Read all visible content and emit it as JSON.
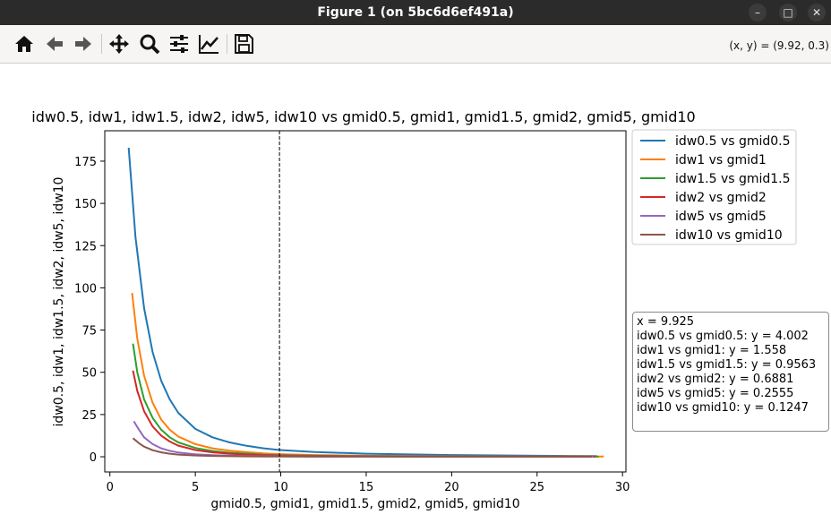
{
  "window": {
    "title": "Figure 1 (on 5bc6d6ef491a)"
  },
  "toolbar": {
    "buttons": [
      {
        "name": "home-icon"
      },
      {
        "name": "back-arrow-icon"
      },
      {
        "name": "forward-arrow-icon"
      },
      {
        "name": "pan-icon"
      },
      {
        "name": "zoom-icon"
      },
      {
        "name": "configure-subplots-icon"
      },
      {
        "name": "edit-axis-icon"
      },
      {
        "name": "save-icon"
      }
    ],
    "coords": "(x, y) = (9.92, 0.3)"
  },
  "tooltip": {
    "lines": [
      "x = 9.925",
      "idw0.5 vs gmid0.5: y = 4.002",
      "idw1 vs gmid1: y = 1.558",
      "idw1.5 vs gmid1.5: y = 0.9563",
      "idw2 vs gmid2: y = 0.6881",
      "idw5 vs gmid5: y = 0.2555",
      "idw10 vs gmid10: y = 0.1247"
    ]
  },
  "chart_data": {
    "type": "line",
    "title": "idw0.5, idw1, idw1.5, idw2, idw5, idw10 vs gmid0.5, gmid1, gmid1.5, gmid2, gmid5, gmid10",
    "xlabel": "gmid0.5, gmid1, gmid1.5, gmid2, gmid5, gmid10",
    "ylabel": "idw0.5, idw1, idw1.5, idw2, idw5, idw10",
    "xlim": [
      -0.3,
      30.2
    ],
    "ylim": [
      -9,
      193
    ],
    "xticks": [
      0,
      5,
      10,
      15,
      20,
      25,
      30
    ],
    "yticks": [
      0,
      25,
      50,
      75,
      100,
      125,
      150,
      175
    ],
    "cursor_x": 9.925,
    "legend_position": "outside right, upper",
    "series": [
      {
        "name": "idw0.5 vs gmid0.5",
        "color": "#1f77b4",
        "x": [
          1.1,
          1.5,
          2.0,
          2.5,
          3.0,
          3.5,
          4.0,
          5.0,
          6.0,
          7.0,
          8.0,
          9.0,
          9.925,
          12.0,
          15.0,
          20.0,
          25.0,
          28.5
        ],
        "y": [
          183,
          130,
          88,
          62,
          45,
          34,
          26,
          16.5,
          11.5,
          8.5,
          6.5,
          5.0,
          4.0,
          2.8,
          1.8,
          1.0,
          0.6,
          0.4
        ]
      },
      {
        "name": "idw1 vs gmid1",
        "color": "#ff7f0e",
        "x": [
          1.3,
          1.6,
          2.0,
          2.5,
          3.0,
          3.5,
          4.0,
          5.0,
          6.0,
          7.0,
          8.0,
          9.0,
          9.925,
          12.0,
          15.0,
          20.0,
          25.0,
          28.9
        ],
        "y": [
          97,
          70,
          48,
          32,
          22,
          16,
          12,
          7.5,
          5.0,
          3.6,
          2.7,
          2.0,
          1.558,
          1.0,
          0.6,
          0.32,
          0.2,
          0.15
        ]
      },
      {
        "name": "idw1.5 vs gmid1.5",
        "color": "#2ca02c",
        "x": [
          1.35,
          1.6,
          2.0,
          2.5,
          3.0,
          3.5,
          4.0,
          5.0,
          6.0,
          7.0,
          8.0,
          9.0,
          9.925,
          12.0,
          15.0,
          20.0,
          25.0,
          28.6
        ],
        "y": [
          67,
          50,
          34,
          23,
          16,
          11.5,
          8.5,
          5.2,
          3.4,
          2.4,
          1.8,
          1.25,
          0.9563,
          0.6,
          0.38,
          0.2,
          0.12,
          0.09
        ]
      },
      {
        "name": "idw2 vs gmid2",
        "color": "#d62728",
        "x": [
          1.35,
          1.6,
          2.0,
          2.5,
          3.0,
          3.5,
          4.0,
          5.0,
          6.0,
          7.0,
          8.0,
          9.0,
          9.925,
          12.0,
          15.0,
          20.0,
          25.0,
          28.4
        ],
        "y": [
          51,
          39,
          27,
          18,
          12.5,
          9.0,
          6.6,
          4.0,
          2.6,
          1.8,
          1.3,
          0.9,
          0.6881,
          0.45,
          0.28,
          0.15,
          0.09,
          0.07
        ]
      },
      {
        "name": "idw5 vs gmid5",
        "color": "#9467bd",
        "x": [
          1.4,
          1.7,
          2.0,
          2.5,
          3.0,
          3.5,
          4.0,
          5.0,
          6.0,
          7.0,
          8.0,
          9.0,
          9.925,
          12.0,
          15.0,
          20.0,
          25.0,
          28.3
        ],
        "y": [
          21,
          16,
          11.5,
          7.5,
          5.0,
          3.5,
          2.5,
          1.5,
          0.95,
          0.65,
          0.47,
          0.34,
          0.2555,
          0.16,
          0.1,
          0.06,
          0.04,
          0.03
        ]
      },
      {
        "name": "idw10 vs gmid10",
        "color": "#8c564b",
        "x": [
          1.35,
          1.7,
          2.0,
          2.5,
          3.0,
          3.5,
          4.0,
          5.0,
          6.0,
          7.0,
          8.0,
          9.0,
          9.925,
          12.0,
          15.0,
          20.0,
          25.0,
          28.2
        ],
        "y": [
          11,
          8.0,
          6.0,
          3.9,
          2.6,
          1.8,
          1.3,
          0.75,
          0.48,
          0.32,
          0.23,
          0.17,
          0.1247,
          0.08,
          0.05,
          0.03,
          0.02,
          0.015
        ]
      }
    ]
  }
}
